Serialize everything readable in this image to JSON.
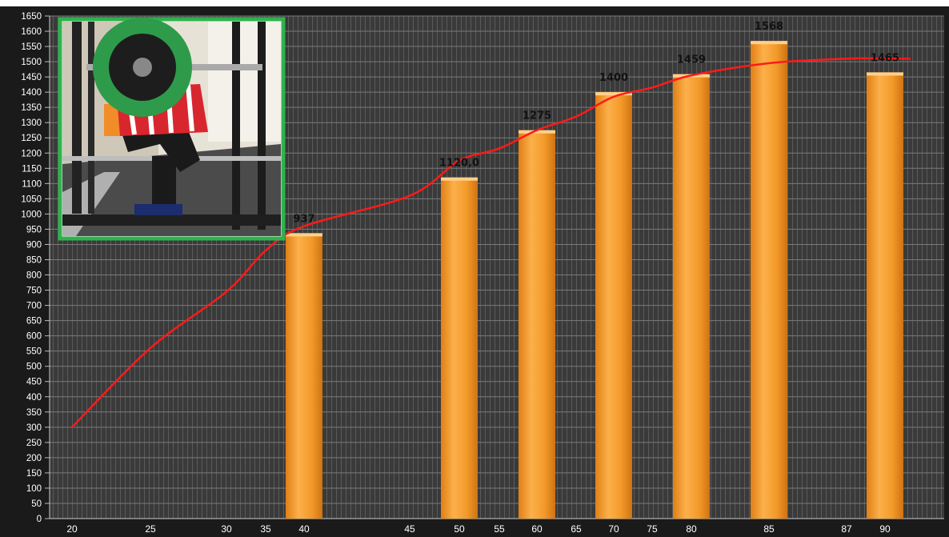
{
  "chart_data": {
    "type": "bar",
    "title": "",
    "xlabel": "",
    "ylabel": "",
    "ylim": [
      0,
      1650
    ],
    "y_ticks": [
      0,
      50,
      100,
      150,
      200,
      250,
      300,
      350,
      400,
      450,
      500,
      550,
      600,
      650,
      700,
      750,
      800,
      850,
      900,
      950,
      1000,
      1050,
      1100,
      1150,
      1200,
      1250,
      1300,
      1350,
      1400,
      1450,
      1500,
      1550,
      1600,
      1650
    ],
    "x_ticks": [
      "20",
      "25",
      "30",
      "35",
      "40",
      "45",
      "50",
      "55",
      "60",
      "65",
      "70",
      "75",
      "80",
      "85",
      "87",
      "90"
    ],
    "x_tick_values": [
      20,
      25,
      30,
      35,
      40,
      45,
      50,
      55,
      60,
      65,
      70,
      75,
      80,
      85,
      87,
      90
    ],
    "grid": true,
    "legend": "none",
    "bars": [
      {
        "x": 40,
        "value": 937,
        "label": "937"
      },
      {
        "x": 50,
        "value": 1120,
        "label": "1120,0"
      },
      {
        "x": 60,
        "value": 1275,
        "label": "1275"
      },
      {
        "x": 70,
        "value": 1400,
        "label": "1400"
      },
      {
        "x": 80,
        "value": 1459,
        "label": "1459"
      },
      {
        "x": 85,
        "value": 1568,
        "label": "1568"
      },
      {
        "x": 90,
        "value": 1465,
        "label": "1465"
      }
    ],
    "trend_line": {
      "x": [
        20,
        25,
        30,
        35,
        40,
        45,
        50,
        55,
        60,
        65,
        70,
        75,
        80,
        85,
        87,
        90,
        92
      ],
      "y": [
        300,
        560,
        745,
        880,
        960,
        1060,
        1175,
        1215,
        1275,
        1320,
        1385,
        1415,
        1455,
        1495,
        1510,
        1510,
        1510
      ]
    },
    "colors": {
      "background": "#3d3d3d",
      "grid": "#6a6a6a",
      "bar": "#f59a28",
      "bar_dark": "#d97a14",
      "trend": "#ff1a1a",
      "inset_border": "#2fb24c"
    }
  },
  "inset_photo": {
    "description": "squat-lift-photo"
  }
}
